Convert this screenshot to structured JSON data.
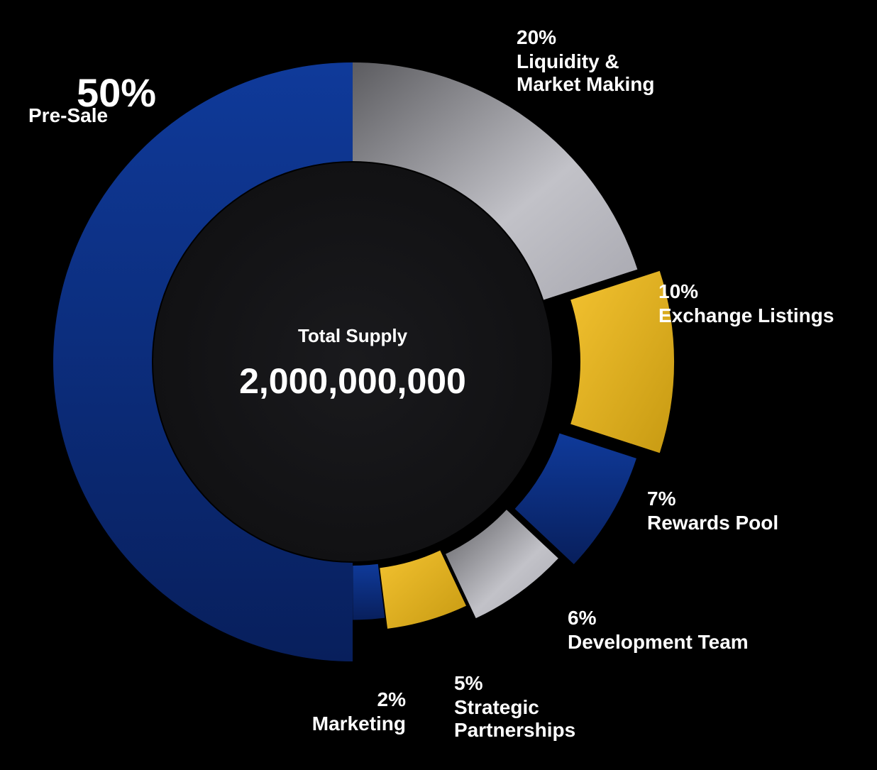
{
  "chart_data": {
    "type": "pie",
    "center": {
      "label": "Total Supply",
      "value": "2,000,000,000"
    },
    "slices": [
      {
        "label": "Liquidity & Market Making",
        "percent": 20,
        "percent_label": "20%",
        "color": "#b4b4ba"
      },
      {
        "label": "Exchange Listings",
        "percent": 10,
        "percent_label": "10%",
        "color": "#e8b428"
      },
      {
        "label": "Rewards Pool",
        "percent": 7,
        "percent_label": "7%",
        "color": "#0e2f8a"
      },
      {
        "label": "Development Team",
        "percent": 6,
        "percent_label": "6%",
        "color": "#b4b4ba"
      },
      {
        "label": "Strategic Partnerships",
        "percent": 5,
        "percent_label": "5%",
        "color": "#e8b428"
      },
      {
        "label": "Marketing",
        "percent": 2,
        "percent_label": "2%",
        "color": "#0e2f8a"
      },
      {
        "label": "Pre-Sale",
        "percent": 50,
        "percent_label": "50%",
        "color": "#0e2f8a"
      }
    ]
  }
}
